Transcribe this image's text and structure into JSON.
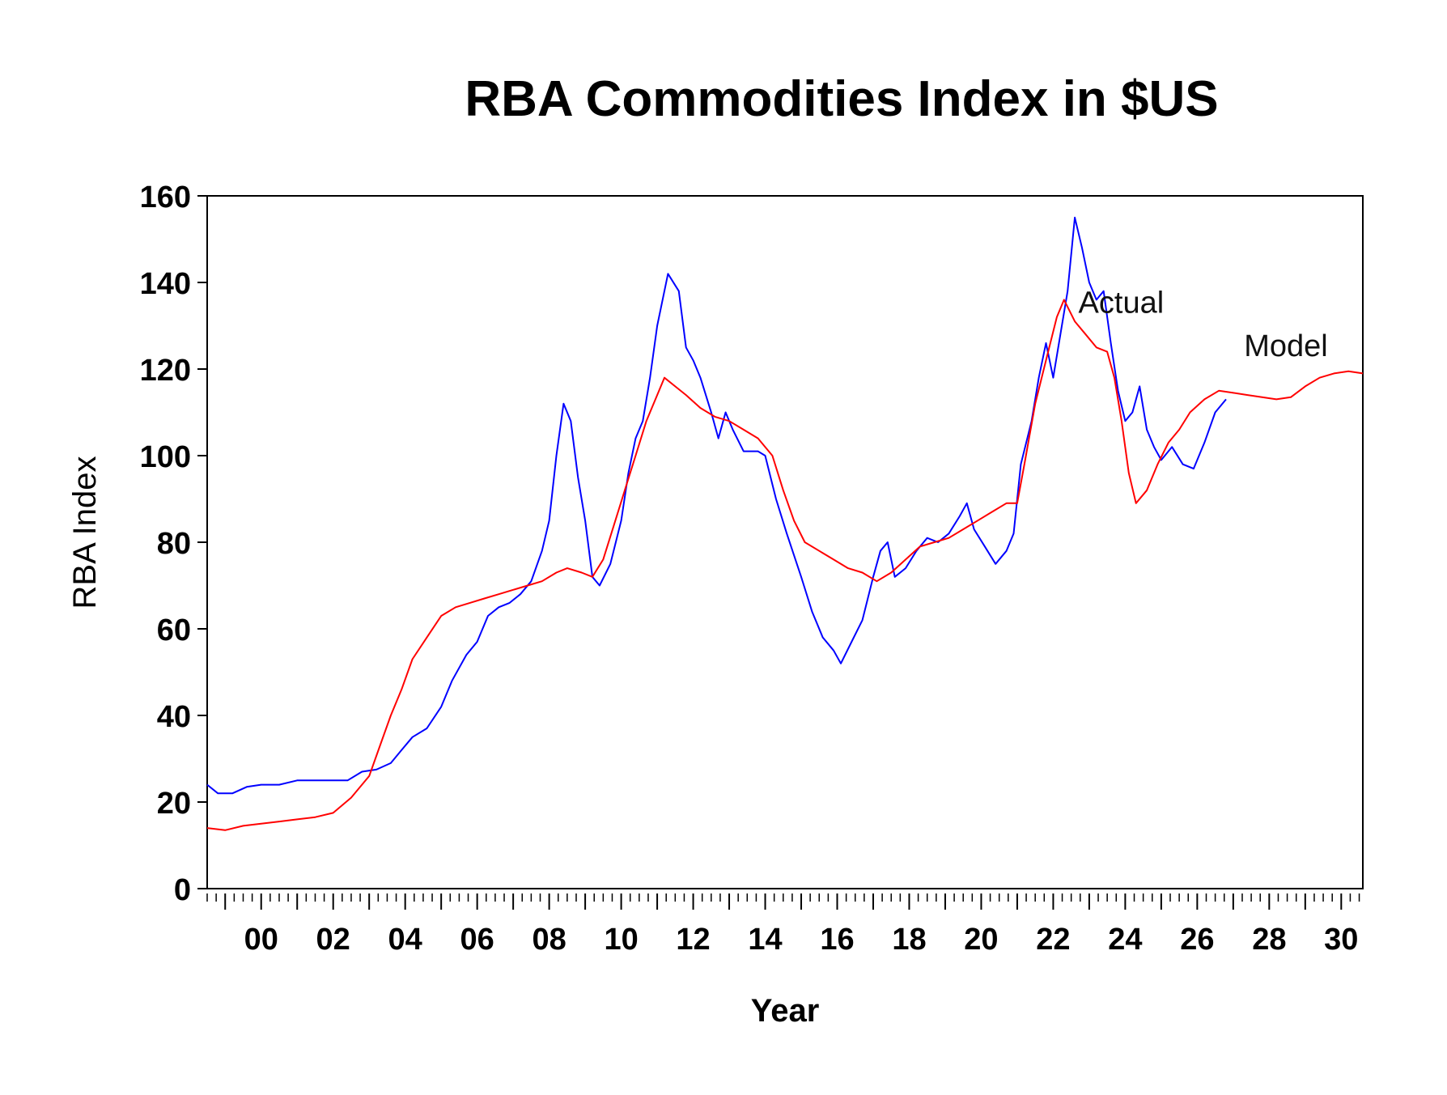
{
  "chart_data": {
    "type": "line",
    "title": "RBA Commodities Index in $US",
    "xlabel": "Year",
    "ylabel": "RBA Index",
    "xlim": [
      1998.5,
      2030.6
    ],
    "ylim": [
      0,
      160
    ],
    "y_ticks": [
      0,
      20,
      40,
      60,
      80,
      100,
      120,
      140,
      160
    ],
    "x_ticks": [
      {
        "x": 2000,
        "label": "00"
      },
      {
        "x": 2002,
        "label": "02"
      },
      {
        "x": 2004,
        "label": "04"
      },
      {
        "x": 2006,
        "label": "06"
      },
      {
        "x": 2008,
        "label": "08"
      },
      {
        "x": 2010,
        "label": "10"
      },
      {
        "x": 2012,
        "label": "12"
      },
      {
        "x": 2014,
        "label": "14"
      },
      {
        "x": 2016,
        "label": "16"
      },
      {
        "x": 2018,
        "label": "18"
      },
      {
        "x": 2020,
        "label": "20"
      },
      {
        "x": 2022,
        "label": "22"
      },
      {
        "x": 2024,
        "label": "24"
      },
      {
        "x": 2026,
        "label": "26"
      },
      {
        "x": 2028,
        "label": "28"
      },
      {
        "x": 2030,
        "label": "30"
      }
    ],
    "grid": false,
    "series": [
      {
        "name": "Actual",
        "color": "#0000ff",
        "annotation": {
          "text": "Actual",
          "x": 2022.7,
          "y": 133
        },
        "points": [
          [
            1998.5,
            24
          ],
          [
            1998.8,
            22
          ],
          [
            1999.2,
            22
          ],
          [
            1999.6,
            23.5
          ],
          [
            2000.0,
            24
          ],
          [
            2000.5,
            24
          ],
          [
            2001.0,
            25
          ],
          [
            2001.5,
            25
          ],
          [
            2002.0,
            25
          ],
          [
            2002.4,
            25
          ],
          [
            2002.8,
            27
          ],
          [
            2003.2,
            27.5
          ],
          [
            2003.6,
            29
          ],
          [
            2003.9,
            32
          ],
          [
            2004.2,
            35
          ],
          [
            2004.6,
            37
          ],
          [
            2005.0,
            42
          ],
          [
            2005.3,
            48
          ],
          [
            2005.7,
            54
          ],
          [
            2006.0,
            57
          ],
          [
            2006.3,
            63
          ],
          [
            2006.6,
            65
          ],
          [
            2006.9,
            66
          ],
          [
            2007.2,
            68
          ],
          [
            2007.5,
            71
          ],
          [
            2007.8,
            78
          ],
          [
            2008.0,
            85
          ],
          [
            2008.2,
            100
          ],
          [
            2008.4,
            112
          ],
          [
            2008.6,
            108
          ],
          [
            2008.8,
            95
          ],
          [
            2009.0,
            85
          ],
          [
            2009.2,
            72
          ],
          [
            2009.4,
            70
          ],
          [
            2009.7,
            75
          ],
          [
            2010.0,
            85
          ],
          [
            2010.2,
            96
          ],
          [
            2010.4,
            104
          ],
          [
            2010.6,
            108
          ],
          [
            2010.8,
            118
          ],
          [
            2011.0,
            130
          ],
          [
            2011.3,
            142
          ],
          [
            2011.6,
            138
          ],
          [
            2011.8,
            125
          ],
          [
            2012.0,
            122
          ],
          [
            2012.2,
            118
          ],
          [
            2012.5,
            110
          ],
          [
            2012.7,
            104
          ],
          [
            2012.9,
            110
          ],
          [
            2013.1,
            106
          ],
          [
            2013.4,
            101
          ],
          [
            2013.8,
            101
          ],
          [
            2014.0,
            100
          ],
          [
            2014.3,
            90
          ],
          [
            2014.6,
            82
          ],
          [
            2015.0,
            72
          ],
          [
            2015.3,
            64
          ],
          [
            2015.6,
            58
          ],
          [
            2015.9,
            55
          ],
          [
            2016.1,
            52
          ],
          [
            2016.4,
            57
          ],
          [
            2016.7,
            62
          ],
          [
            2017.0,
            72
          ],
          [
            2017.2,
            78
          ],
          [
            2017.4,
            80
          ],
          [
            2017.6,
            72
          ],
          [
            2017.9,
            74
          ],
          [
            2018.2,
            78
          ],
          [
            2018.5,
            81
          ],
          [
            2018.8,
            80
          ],
          [
            2019.1,
            82
          ],
          [
            2019.4,
            86
          ],
          [
            2019.6,
            89
          ],
          [
            2019.8,
            83
          ],
          [
            2020.1,
            79
          ],
          [
            2020.4,
            75
          ],
          [
            2020.7,
            78
          ],
          [
            2020.9,
            82
          ],
          [
            2021.1,
            98
          ],
          [
            2021.4,
            108
          ],
          [
            2021.6,
            118
          ],
          [
            2021.8,
            126
          ],
          [
            2022.0,
            118
          ],
          [
            2022.2,
            128
          ],
          [
            2022.4,
            138
          ],
          [
            2022.6,
            155
          ],
          [
            2022.8,
            148
          ],
          [
            2023.0,
            140
          ],
          [
            2023.2,
            136
          ],
          [
            2023.4,
            138
          ],
          [
            2023.6,
            126
          ],
          [
            2023.8,
            115
          ],
          [
            2024.0,
            108
          ],
          [
            2024.2,
            110
          ],
          [
            2024.4,
            116
          ],
          [
            2024.6,
            106
          ],
          [
            2024.8,
            102
          ],
          [
            2025.0,
            99
          ],
          [
            2025.3,
            102
          ],
          [
            2025.6,
            98
          ],
          [
            2025.9,
            97
          ],
          [
            2026.2,
            103
          ],
          [
            2026.5,
            110
          ],
          [
            2026.8,
            113
          ]
        ]
      },
      {
        "name": "Model",
        "color": "#ff0000",
        "annotation": {
          "text": "Model",
          "x": 2027.3,
          "y": 123
        },
        "points": [
          [
            1998.5,
            14
          ],
          [
            1999.0,
            13.5
          ],
          [
            1999.5,
            14.5
          ],
          [
            2000.0,
            15
          ],
          [
            2000.5,
            15.5
          ],
          [
            2001.0,
            16
          ],
          [
            2001.5,
            16.5
          ],
          [
            2002.0,
            17.5
          ],
          [
            2002.5,
            21
          ],
          [
            2003.0,
            26
          ],
          [
            2003.3,
            33
          ],
          [
            2003.6,
            40
          ],
          [
            2003.9,
            46
          ],
          [
            2004.2,
            53
          ],
          [
            2004.6,
            58
          ],
          [
            2005.0,
            63
          ],
          [
            2005.4,
            65
          ],
          [
            2005.8,
            66
          ],
          [
            2006.2,
            67
          ],
          [
            2006.6,
            68
          ],
          [
            2007.0,
            69
          ],
          [
            2007.4,
            70
          ],
          [
            2007.8,
            71
          ],
          [
            2008.2,
            73
          ],
          [
            2008.5,
            74
          ],
          [
            2008.9,
            73
          ],
          [
            2009.2,
            72
          ],
          [
            2009.5,
            76
          ],
          [
            2009.8,
            84
          ],
          [
            2010.1,
            92
          ],
          [
            2010.4,
            100
          ],
          [
            2010.7,
            108
          ],
          [
            2011.0,
            114
          ],
          [
            2011.2,
            118
          ],
          [
            2011.5,
            116
          ],
          [
            2011.8,
            114
          ],
          [
            2012.2,
            111
          ],
          [
            2012.6,
            109
          ],
          [
            2013.0,
            108
          ],
          [
            2013.4,
            106
          ],
          [
            2013.8,
            104
          ],
          [
            2014.2,
            100
          ],
          [
            2014.5,
            92
          ],
          [
            2014.8,
            85
          ],
          [
            2015.1,
            80
          ],
          [
            2015.5,
            78
          ],
          [
            2015.9,
            76
          ],
          [
            2016.3,
            74
          ],
          [
            2016.7,
            73
          ],
          [
            2017.1,
            71
          ],
          [
            2017.5,
            73
          ],
          [
            2017.9,
            76
          ],
          [
            2018.3,
            79
          ],
          [
            2018.7,
            80
          ],
          [
            2019.1,
            81
          ],
          [
            2019.5,
            83
          ],
          [
            2019.9,
            85
          ],
          [
            2020.3,
            87
          ],
          [
            2020.7,
            89
          ],
          [
            2021.0,
            89
          ],
          [
            2021.2,
            98
          ],
          [
            2021.5,
            112
          ],
          [
            2021.8,
            122
          ],
          [
            2022.1,
            132
          ],
          [
            2022.3,
            136
          ],
          [
            2022.6,
            131
          ],
          [
            2022.9,
            128
          ],
          [
            2023.2,
            125
          ],
          [
            2023.5,
            124
          ],
          [
            2023.7,
            118
          ],
          [
            2023.9,
            108
          ],
          [
            2024.1,
            96
          ],
          [
            2024.3,
            89
          ],
          [
            2024.6,
            92
          ],
          [
            2024.9,
            98
          ],
          [
            2025.2,
            103
          ],
          [
            2025.5,
            106
          ],
          [
            2025.8,
            110
          ],
          [
            2026.2,
            113
          ],
          [
            2026.6,
            115
          ],
          [
            2027.0,
            114.5
          ],
          [
            2027.4,
            114
          ],
          [
            2027.8,
            113.5
          ],
          [
            2028.2,
            113
          ],
          [
            2028.6,
            113.5
          ],
          [
            2029.0,
            116
          ],
          [
            2029.4,
            118
          ],
          [
            2029.8,
            119
          ],
          [
            2030.2,
            119.5
          ],
          [
            2030.6,
            119
          ]
        ]
      }
    ]
  }
}
